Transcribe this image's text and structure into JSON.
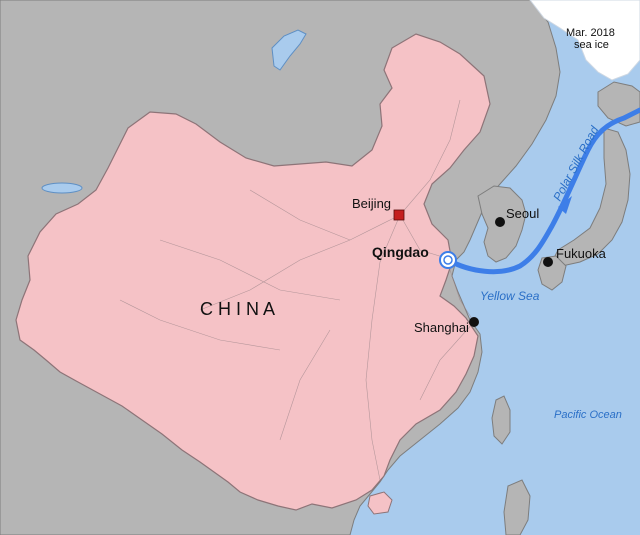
{
  "map": {
    "country_label": "C H I N A",
    "cities": {
      "beijing": "Beijing",
      "qingdao": "Qingdao",
      "seoul": "Seoul",
      "shanghai": "Shanghai",
      "fukuoka": "Fukuoka"
    },
    "water": {
      "yellow_sea": "Yellow Sea",
      "pacific_ocean": "Pacific Ocean"
    },
    "route": {
      "label": "Polar Silk Road"
    },
    "sea_ice": {
      "line1": "Mar. 2018",
      "line2": "sea ice"
    },
    "colors": {
      "ocean": "#a9cbed",
      "land": "#b5b5b5",
      "china": "#f5c2c6",
      "route": "#3d7ee8",
      "capital": "#c41e1e",
      "sea_ice": "#ffffff"
    }
  }
}
